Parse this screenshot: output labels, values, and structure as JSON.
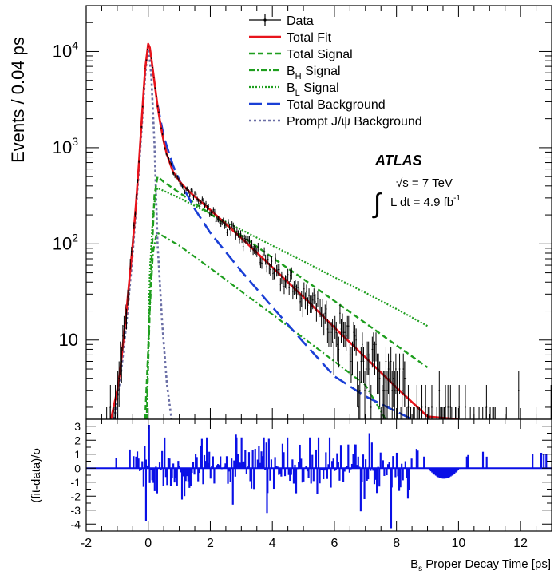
{
  "chart_data": [
    {
      "type": "line",
      "panel": "main",
      "yscale": "log",
      "xlim": [
        -2,
        13
      ],
      "ylim": [
        1.5,
        30000
      ],
      "ylabel": "Events / 0.04 ps",
      "ytick_labels": [
        {
          "value": 10000,
          "base": "10",
          "exp": "4"
        },
        {
          "value": 1000,
          "base": "10",
          "exp": "3"
        },
        {
          "value": 100,
          "base": "10",
          "exp": "2"
        },
        {
          "value": 10,
          "base": "10",
          "exp": ""
        }
      ],
      "annotation": {
        "experiment": "ATLAS",
        "energy_prefix": "√s",
        "energy_value": " = 7 TeV",
        "integral_symbol": "∫",
        "lumi_text": "L dt = 4.9 fb",
        "lumi_exp": "-1"
      },
      "legend": [
        {
          "key": "data",
          "label": "Data",
          "style": "data",
          "color": "#000000"
        },
        {
          "key": "total_fit",
          "label": "Total Fit",
          "style": "solid",
          "color": "#e8141c"
        },
        {
          "key": "total_signal",
          "label": "Total Signal",
          "style": "dashed",
          "color": "#1e9e1e"
        },
        {
          "key": "bh_signal",
          "label": "B",
          "sub": "H",
          "suffix": " Signal",
          "style": "dashdot",
          "color": "#1e9e1e"
        },
        {
          "key": "bl_signal",
          "label": "B",
          "sub": "L",
          "suffix": " Signal",
          "style": "dotted",
          "color": "#1e9e1e"
        },
        {
          "key": "total_bkg",
          "label": "Total Background",
          "style": "longdash",
          "color": "#1a3fd6"
        },
        {
          "key": "prompt_bkg",
          "label": "Prompt J/ψ Background",
          "style": "dotted-wide",
          "color": "#6b6fa6"
        }
      ],
      "series": {
        "total_fit": {
          "x": [
            -1.2,
            -1.0,
            -0.9,
            -0.8,
            -0.7,
            -0.6,
            -0.5,
            -0.4,
            -0.3,
            -0.2,
            -0.1,
            0.0,
            0.05,
            0.1,
            0.2,
            0.3,
            0.4,
            0.5,
            0.6,
            0.8,
            1.0,
            1.2,
            1.5,
            2.0,
            3.0,
            4.0,
            5.0,
            6.0,
            7.0,
            8.0,
            9.0,
            10.0
          ],
          "y": [
            1.5,
            3,
            5,
            10,
            20,
            45,
            100,
            250,
            700,
            2200,
            6500,
            12000,
            11000,
            8500,
            4800,
            2700,
            1700,
            1150,
            850,
            560,
            450,
            380,
            310,
            225,
            115,
            57,
            28,
            13.5,
            6.6,
            3.2,
            1.6,
            1.5
          ]
        },
        "total_signal": {
          "x": [
            -0.1,
            0.0,
            0.1,
            0.2,
            0.3,
            0.5,
            1.0,
            2.0,
            3.0,
            4.0,
            5.0,
            6.0,
            7.0,
            8.0,
            9.0
          ],
          "y": [
            1.5,
            8,
            60,
            320,
            500,
            440,
            340,
            205,
            122,
            72,
            43,
            25.5,
            15,
            8.8,
            5.2
          ]
        },
        "bh_signal": {
          "x": [
            -0.05,
            0.05,
            0.15,
            0.25,
            0.3,
            1.0,
            2.0,
            3.0,
            4.0,
            5.0,
            6.0,
            7.0,
            7.65
          ],
          "y": [
            1.5,
            20,
            80,
            120,
            130,
            96,
            56,
            32,
            18.5,
            10.5,
            6,
            3.4,
            1.5
          ]
        },
        "bl_signal": {
          "x": [
            -0.05,
            0.05,
            0.15,
            0.25,
            0.3,
            1.0,
            2.0,
            3.0,
            4.0,
            5.0,
            6.0,
            7.0,
            8.0,
            9.0
          ],
          "y": [
            1.5,
            50,
            200,
            350,
            380,
            300,
            205,
            140,
            96,
            66,
            45,
            31,
            21,
            14
          ]
        },
        "total_bkg": {
          "x": [
            0.3,
            0.5,
            0.8,
            1.0,
            1.5,
            2.0,
            3.0,
            4.0,
            5.0,
            6.0,
            7.0,
            8.0,
            8.5
          ],
          "y": [
            2800,
            1300,
            650,
            460,
            230,
            130,
            52,
            22,
            9.5,
            4.2,
            2.6,
            1.8,
            1.5
          ]
        },
        "prompt_bkg": {
          "x": [
            -1.1,
            -0.9,
            -0.7,
            -0.5,
            -0.3,
            -0.1,
            0.0,
            0.1,
            0.2,
            0.3,
            0.45,
            0.6,
            0.75
          ],
          "y": [
            1.5,
            4,
            15,
            80,
            600,
            5500,
            12000,
            5500,
            1100,
            100,
            15,
            3.5,
            1.5
          ]
        },
        "data": {
          "x_start": -2.0,
          "x_end": 12.96,
          "bin_width": 0.04,
          "note_source": "values follow the Total Fit with statistical scatter"
        }
      }
    },
    {
      "type": "bar",
      "panel": "residual",
      "xlim": [
        -2,
        13
      ],
      "ylim": [
        -4.5,
        3.5
      ],
      "ylabel": "(fit-data)/σ",
      "xlabel_prefix": "B",
      "xlabel_sub": "s",
      "xlabel_suffix": " Proper Decay Time [ps]",
      "xticks": [
        -2,
        0,
        2,
        4,
        6,
        8,
        10,
        12
      ],
      "yticks": [
        3,
        2,
        1,
        0,
        -1,
        -2,
        -3,
        -4
      ],
      "color": "#0a10e6",
      "features": {
        "largest_positive": [
          {
            "x": 0.0,
            "y": 3.1
          },
          {
            "x": 2.8,
            "y": 2.4
          },
          {
            "x": 7.1,
            "y": 2.5
          }
        ],
        "largest_negative": [
          {
            "x": -0.1,
            "y": -3.8
          },
          {
            "x": 3.8,
            "y": -3.2
          },
          {
            "x": 7.8,
            "y": -4.3
          }
        ],
        "smooth_negative_region": [
          9.0,
          10.0
        ]
      }
    }
  ]
}
